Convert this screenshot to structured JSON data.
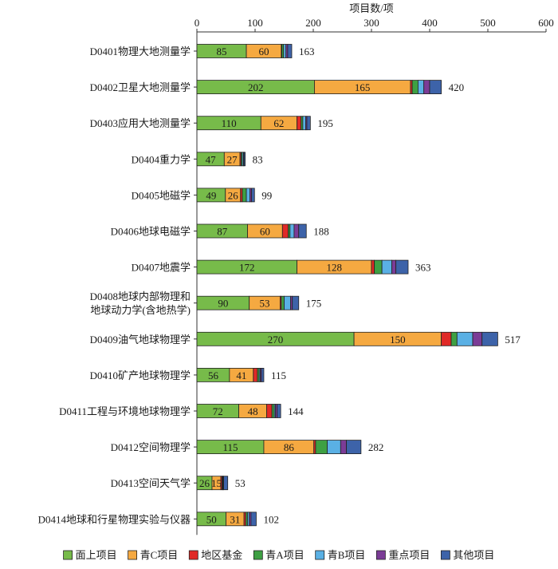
{
  "chart_data": {
    "type": "bar",
    "orientation": "horizontal",
    "stacked": true,
    "xlabel": "项目数/项",
    "xlim": [
      0,
      600
    ],
    "xticks": [
      "0",
      "100",
      "200",
      "300",
      "400",
      "500",
      "600"
    ],
    "xtick_values": [
      0,
      100,
      200,
      300,
      400,
      500,
      600
    ],
    "legend_position": "bottom",
    "categories": [
      [
        "D0401物理大地测量学"
      ],
      [
        "D0402卫星大地测量学"
      ],
      [
        "D0403应用大地测量学"
      ],
      [
        "D0404重力学"
      ],
      [
        "D0405地磁学"
      ],
      [
        "D0406地球电磁学"
      ],
      [
        "D0407地震学"
      ],
      [
        "D0408地球内部物理和",
        "地球动力学(含地热学)"
      ],
      [
        "D0409油气地球物理学"
      ],
      [
        "D0410矿产地球物理学"
      ],
      [
        "D0411工程与环境地球物理学"
      ],
      [
        "D0412空间物理学"
      ],
      [
        "D0413空间天气学"
      ],
      [
        "D0414地球和行星物理实验与仪器"
      ]
    ],
    "series": [
      {
        "name": "面上项目",
        "color": "#77bb4a",
        "values": [
          85,
          202,
          110,
          47,
          49,
          87,
          172,
          90,
          270,
          56,
          72,
          115,
          26,
          50
        ]
      },
      {
        "name": "青C项目",
        "color": "#f5a941",
        "values": [
          60,
          165,
          62,
          27,
          26,
          60,
          128,
          53,
          150,
          41,
          48,
          86,
          15,
          31
        ]
      },
      {
        "name": "地区基金",
        "color": "#e02a27",
        "values": [
          1,
          3,
          7,
          2,
          3,
          10,
          5,
          2,
          17,
          7,
          9,
          3,
          2,
          3
        ]
      },
      {
        "name": "青A项目",
        "color": "#3ea043",
        "values": [
          3,
          10,
          3,
          2,
          7,
          3,
          13,
          5,
          10,
          3,
          4,
          20,
          1,
          3
        ]
      },
      {
        "name": "青B项目",
        "color": "#5ab0e4",
        "values": [
          4,
          10,
          5,
          2,
          6,
          7,
          17,
          11,
          27,
          2,
          2,
          23,
          1,
          3
        ]
      },
      {
        "name": "重点项目",
        "color": "#7b3c96",
        "values": [
          3,
          10,
          2,
          1,
          3,
          8,
          7,
          3,
          16,
          2,
          3,
          10,
          1,
          3
        ]
      },
      {
        "name": "其他项目",
        "color": "#3d63a9",
        "values": [
          7,
          20,
          6,
          2,
          5,
          13,
          21,
          11,
          27,
          4,
          6,
          25,
          7,
          9
        ]
      }
    ],
    "segment_labels": [
      [
        "85",
        "60"
      ],
      [
        "202",
        "165"
      ],
      [
        "110",
        "62"
      ],
      [
        "47",
        "27"
      ],
      [
        "49",
        "26"
      ],
      [
        "87",
        "60"
      ],
      [
        "172",
        "128"
      ],
      [
        "90",
        "53"
      ],
      [
        "270",
        "150"
      ],
      [
        "56",
        "41"
      ],
      [
        "72",
        "48"
      ],
      [
        "115",
        "86"
      ],
      [
        "26",
        "15"
      ],
      [
        "50",
        "31"
      ]
    ],
    "totals": [
      163,
      420,
      195,
      83,
      99,
      188,
      363,
      175,
      517,
      115,
      144,
      282,
      53,
      102
    ],
    "total_labels": [
      "163",
      "420",
      "195",
      "83",
      "99",
      "188",
      "363",
      "175",
      "517",
      "115",
      "144",
      "282",
      "53",
      "102"
    ]
  }
}
